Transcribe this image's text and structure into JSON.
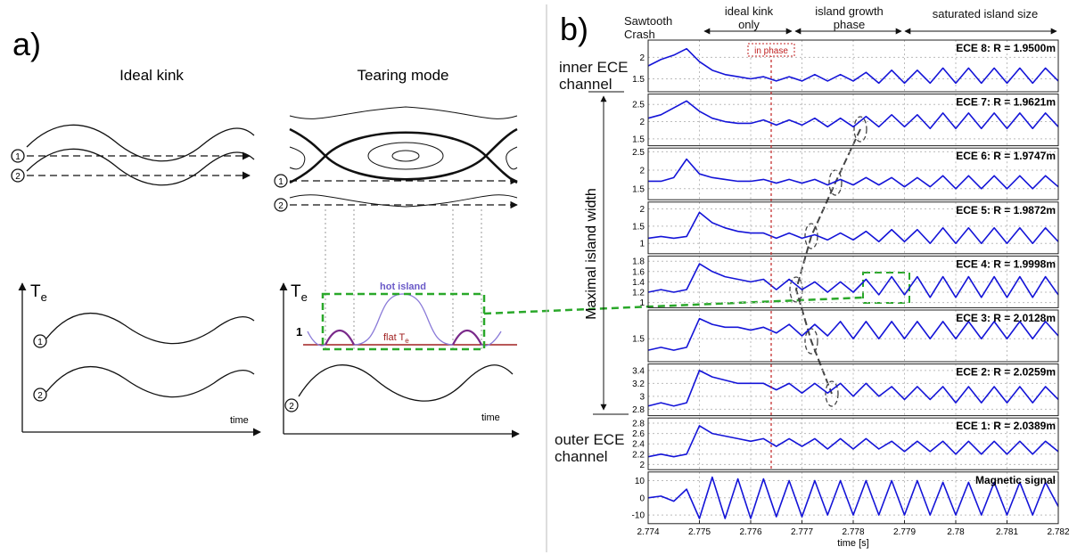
{
  "panel_a": {
    "label": "a)",
    "ideal_kink": {
      "title": "Ideal kink",
      "markers": [
        "1",
        "2"
      ],
      "y_label": "T",
      "y_label_sub": "e",
      "x_label": "time"
    },
    "tearing_mode": {
      "title": "Tearing mode",
      "markers": [
        "1",
        "2"
      ],
      "y_label": "T",
      "y_label_sub": "e",
      "x_label": "time",
      "hot_island": "hot island",
      "flat": "flat T",
      "flat_sub": "e"
    }
  },
  "chart_data": {
    "type": "line",
    "label": "b)",
    "phases": [
      "Sawtooth Crash",
      "ideal kink only",
      "island growth phase",
      "saturated island size"
    ],
    "annotations": {
      "in_phase": "in phase",
      "inner": "inner ECE channel",
      "outer": "outer ECE channel",
      "width": "Maximal island width"
    },
    "x_label": "time [s]",
    "x": [
      2.774,
      2.77425,
      2.7745,
      2.77475,
      2.775,
      2.77525,
      2.7755,
      2.77575,
      2.776,
      2.77625,
      2.7765,
      2.77675,
      2.777,
      2.77725,
      2.7775,
      2.77775,
      2.778,
      2.77825,
      2.7785,
      2.77875,
      2.779,
      2.77925,
      2.7795,
      2.77975,
      2.78,
      2.78025,
      2.7805,
      2.78075,
      2.781,
      2.78125,
      2.7815,
      2.78175,
      2.782
    ],
    "xlim": [
      2.774,
      2.782
    ],
    "xticks": [
      2.774,
      2.775,
      2.776,
      2.777,
      2.778,
      2.779,
      2.78,
      2.781,
      2.782
    ],
    "grid": true,
    "color": "#1414d8",
    "marker_time": 2.7764,
    "panels": [
      {
        "name": "ECE 8: R = 1.9500m",
        "ylim": [
          1.2,
          2.4
        ],
        "yticks": [
          1.5,
          2
        ],
        "values": [
          1.8,
          1.95,
          2.05,
          2.2,
          1.9,
          1.7,
          1.6,
          1.55,
          1.5,
          1.55,
          1.45,
          1.55,
          1.45,
          1.6,
          1.45,
          1.6,
          1.45,
          1.65,
          1.4,
          1.7,
          1.4,
          1.7,
          1.4,
          1.75,
          1.4,
          1.75,
          1.4,
          1.75,
          1.4,
          1.75,
          1.4,
          1.75,
          1.45
        ]
      },
      {
        "name": "ECE 7: R = 1.9621m",
        "ylim": [
          1.3,
          2.8
        ],
        "yticks": [
          1.5,
          2,
          2.5
        ],
        "values": [
          2.1,
          2.2,
          2.4,
          2.6,
          2.3,
          2.1,
          2.0,
          1.95,
          1.95,
          2.05,
          1.9,
          2.05,
          1.9,
          2.1,
          1.85,
          2.1,
          1.85,
          2.15,
          1.85,
          2.2,
          1.85,
          2.2,
          1.8,
          2.25,
          1.8,
          2.25,
          1.8,
          2.25,
          1.8,
          2.25,
          1.8,
          2.25,
          1.85
        ]
      },
      {
        "name": "ECE 6: R = 1.9747m",
        "ylim": [
          1.2,
          2.6
        ],
        "yticks": [
          1.5,
          2,
          2.5
        ],
        "values": [
          1.7,
          1.7,
          1.8,
          2.3,
          1.9,
          1.8,
          1.75,
          1.7,
          1.7,
          1.75,
          1.65,
          1.75,
          1.65,
          1.75,
          1.6,
          1.75,
          1.6,
          1.8,
          1.6,
          1.8,
          1.55,
          1.8,
          1.55,
          1.85,
          1.5,
          1.85,
          1.5,
          1.85,
          1.5,
          1.85,
          1.5,
          1.85,
          1.55
        ]
      },
      {
        "name": "ECE 5: R = 1.9872m",
        "ylim": [
          0.7,
          2.2
        ],
        "yticks": [
          1,
          1.5,
          2
        ],
        "values": [
          1.15,
          1.2,
          1.15,
          1.2,
          1.9,
          1.6,
          1.45,
          1.35,
          1.3,
          1.3,
          1.15,
          1.3,
          1.15,
          1.25,
          1.1,
          1.3,
          1.1,
          1.35,
          1.05,
          1.4,
          1.05,
          1.4,
          1.0,
          1.45,
          1.0,
          1.45,
          1.0,
          1.45,
          1.0,
          1.45,
          1.0,
          1.45,
          1.05
        ]
      },
      {
        "name": "ECE 4: R = 1.9998m",
        "ylim": [
          0.9,
          1.9
        ],
        "yticks": [
          1,
          1.2,
          1.4,
          1.6,
          1.8
        ],
        "values": [
          1.2,
          1.25,
          1.2,
          1.25,
          1.75,
          1.6,
          1.5,
          1.45,
          1.4,
          1.45,
          1.25,
          1.45,
          1.25,
          1.4,
          1.2,
          1.4,
          1.2,
          1.45,
          1.15,
          1.5,
          1.15,
          1.5,
          1.1,
          1.5,
          1.1,
          1.5,
          1.1,
          1.5,
          1.1,
          1.5,
          1.1,
          1.5,
          1.15
        ]
      },
      {
        "name": "ECE 3: R = 2.0128m",
        "ylim": [
          1.1,
          2.0
        ],
        "yticks": [
          1.5
        ],
        "values": [
          1.3,
          1.35,
          1.3,
          1.35,
          1.85,
          1.75,
          1.7,
          1.7,
          1.65,
          1.7,
          1.6,
          1.75,
          1.55,
          1.75,
          1.55,
          1.8,
          1.5,
          1.8,
          1.5,
          1.8,
          1.5,
          1.8,
          1.5,
          1.8,
          1.5,
          1.8,
          1.5,
          1.8,
          1.5,
          1.8,
          1.5,
          1.8,
          1.55
        ]
      },
      {
        "name": "ECE 2: R = 2.0259m",
        "ylim": [
          2.7,
          3.5
        ],
        "yticks": [
          2.8,
          3,
          3.2,
          3.4
        ],
        "values": [
          2.85,
          2.9,
          2.85,
          2.9,
          3.4,
          3.3,
          3.25,
          3.2,
          3.2,
          3.2,
          3.1,
          3.2,
          3.05,
          3.2,
          3.05,
          3.2,
          3.0,
          3.2,
          3.0,
          3.15,
          2.95,
          3.15,
          2.95,
          3.15,
          2.9,
          3.15,
          2.9,
          3.15,
          2.9,
          3.15,
          2.9,
          3.15,
          2.95
        ]
      },
      {
        "name": "ECE 1: R = 2.0389m",
        "ylim": [
          1.9,
          2.9
        ],
        "yticks": [
          2,
          2.2,
          2.4,
          2.6,
          2.8
        ],
        "values": [
          2.15,
          2.2,
          2.15,
          2.2,
          2.75,
          2.6,
          2.55,
          2.5,
          2.45,
          2.5,
          2.35,
          2.5,
          2.35,
          2.5,
          2.3,
          2.5,
          2.3,
          2.5,
          2.3,
          2.45,
          2.25,
          2.45,
          2.25,
          2.45,
          2.2,
          2.45,
          2.2,
          2.45,
          2.2,
          2.45,
          2.2,
          2.45,
          2.25
        ]
      },
      {
        "name": "Magnetic signal",
        "ylim": [
          -15,
          15
        ],
        "yticks": [
          -10,
          0,
          10
        ],
        "values": [
          0,
          1,
          -2,
          5,
          -12,
          12,
          -12,
          11,
          -12,
          11,
          -11,
          10,
          -11,
          10,
          -10,
          10,
          -10,
          10,
          -10,
          10,
          -10,
          10,
          -10,
          9,
          -10,
          9,
          -10,
          9,
          -10,
          9,
          -10,
          9,
          -5
        ]
      }
    ]
  }
}
